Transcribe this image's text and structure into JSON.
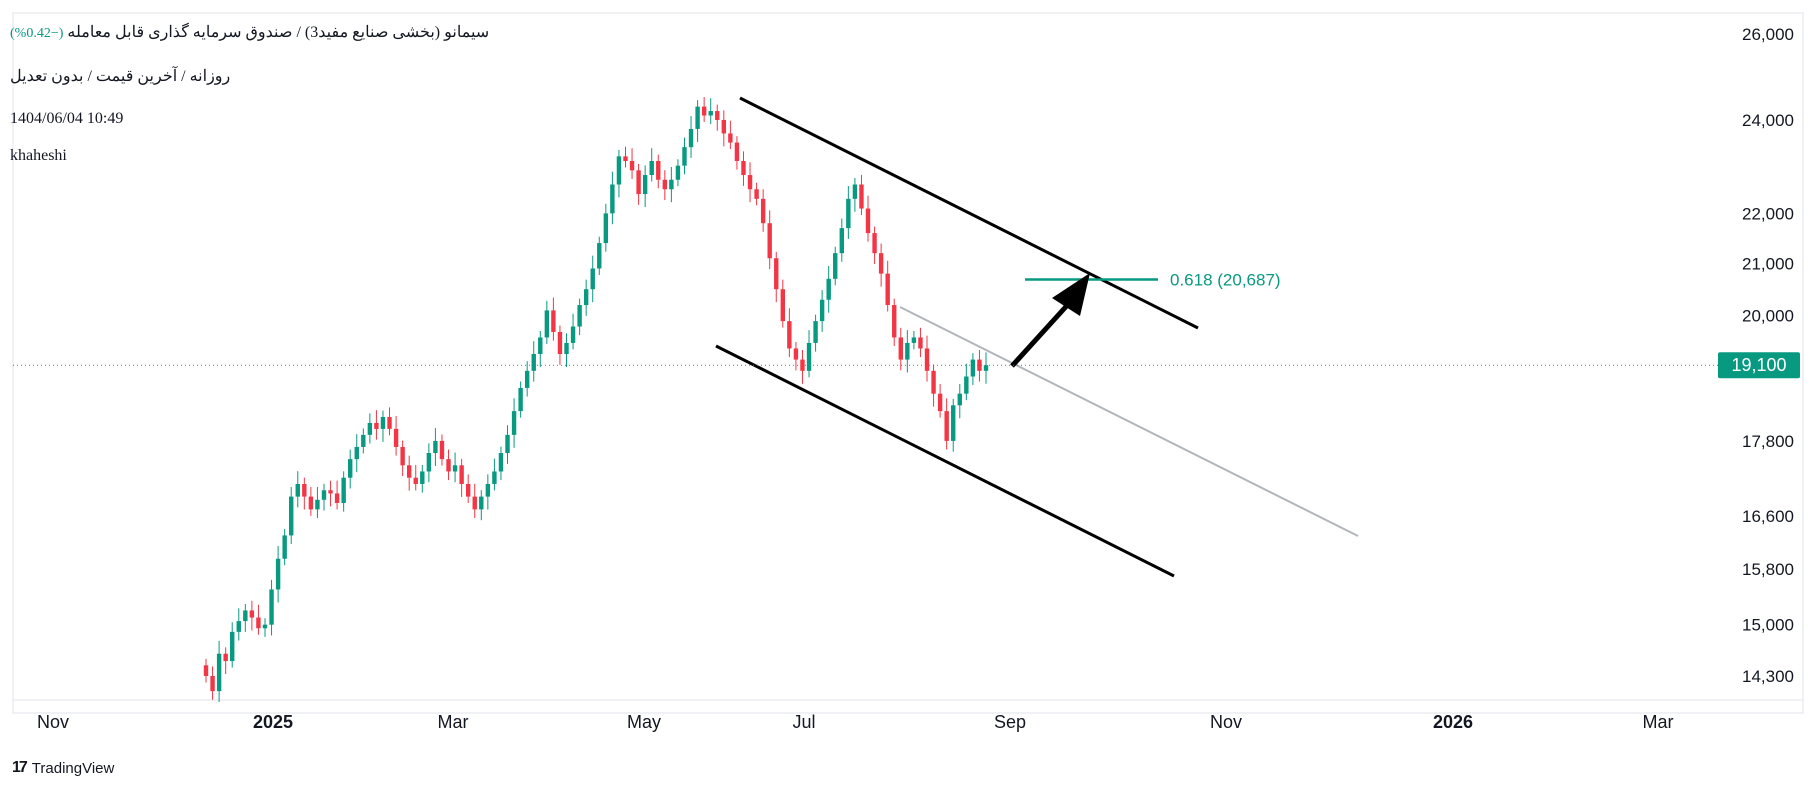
{
  "header": {
    "symbol_line": "سیمانو (بخشی صنایع مفید3) / صندوق سرمایه گذاری قابل معامله",
    "change_text": "(−0.42%)",
    "interval_line": "روزانه / آخرین قیمت / بدون تعدیل",
    "timestamp": "1404/06/04 10:49",
    "author": "khaheshi"
  },
  "footer": {
    "brand": "TradingView",
    "logo_icon": "tradingview-logo-icon"
  },
  "colors": {
    "up": "#089981",
    "down": "#F23645",
    "fib": "#089981",
    "channel": "#000000",
    "midline": "#B2B5BE",
    "grid": "#E0E3EB",
    "axis_text": "#131722"
  },
  "chart_data": {
    "type": "candlestick",
    "y_axis": {
      "scale": "log",
      "ticks": [
        26000,
        24000,
        22000,
        21000,
        20000,
        19100,
        17800,
        16600,
        15800,
        15000,
        14300
      ]
    },
    "x_axis": {
      "ticks": [
        "Nov",
        "2025",
        "Mar",
        "May",
        "Jul",
        "Sep",
        "Nov",
        "2026",
        "Mar"
      ]
    },
    "last_price": {
      "value": 19100,
      "label": "19,100"
    },
    "fib_level": {
      "value": 20687,
      "label": "0.618 (20,687)"
    },
    "closes": [
      14300,
      14100,
      14600,
      14500,
      14900,
      15050,
      15200,
      15100,
      14950,
      15000,
      15500,
      15950,
      16300,
      16900,
      17100,
      16900,
      16700,
      16850,
      17000,
      16950,
      16800,
      17200,
      17500,
      17700,
      17900,
      18100,
      18000,
      18200,
      18000,
      17700,
      17400,
      17200,
      17100,
      17300,
      17600,
      17800,
      17500,
      17300,
      17400,
      17100,
      16900,
      16700,
      16900,
      17100,
      17300,
      17600,
      17900,
      18300,
      18700,
      19000,
      19300,
      19600,
      20100,
      19700,
      19300,
      19500,
      19800,
      20200,
      20500,
      20900,
      21400,
      22000,
      22600,
      23200,
      23100,
      22900,
      22400,
      22800,
      23100,
      22700,
      22500,
      22700,
      23000,
      23400,
      23800,
      24300,
      24100,
      24200,
      24000,
      23700,
      23500,
      23100,
      22800,
      22500,
      22300,
      21800,
      21100,
      20500,
      19900,
      19400,
      19200,
      19000,
      19500,
      19900,
      20300,
      20700,
      21200,
      21700,
      22300,
      22600,
      22100,
      21600,
      21200,
      20800,
      20200,
      19600,
      19200,
      19500,
      19600,
      19400,
      19000,
      18600,
      18300,
      17800,
      18400,
      18600,
      18900,
      19200,
      19000,
      19100
    ]
  }
}
